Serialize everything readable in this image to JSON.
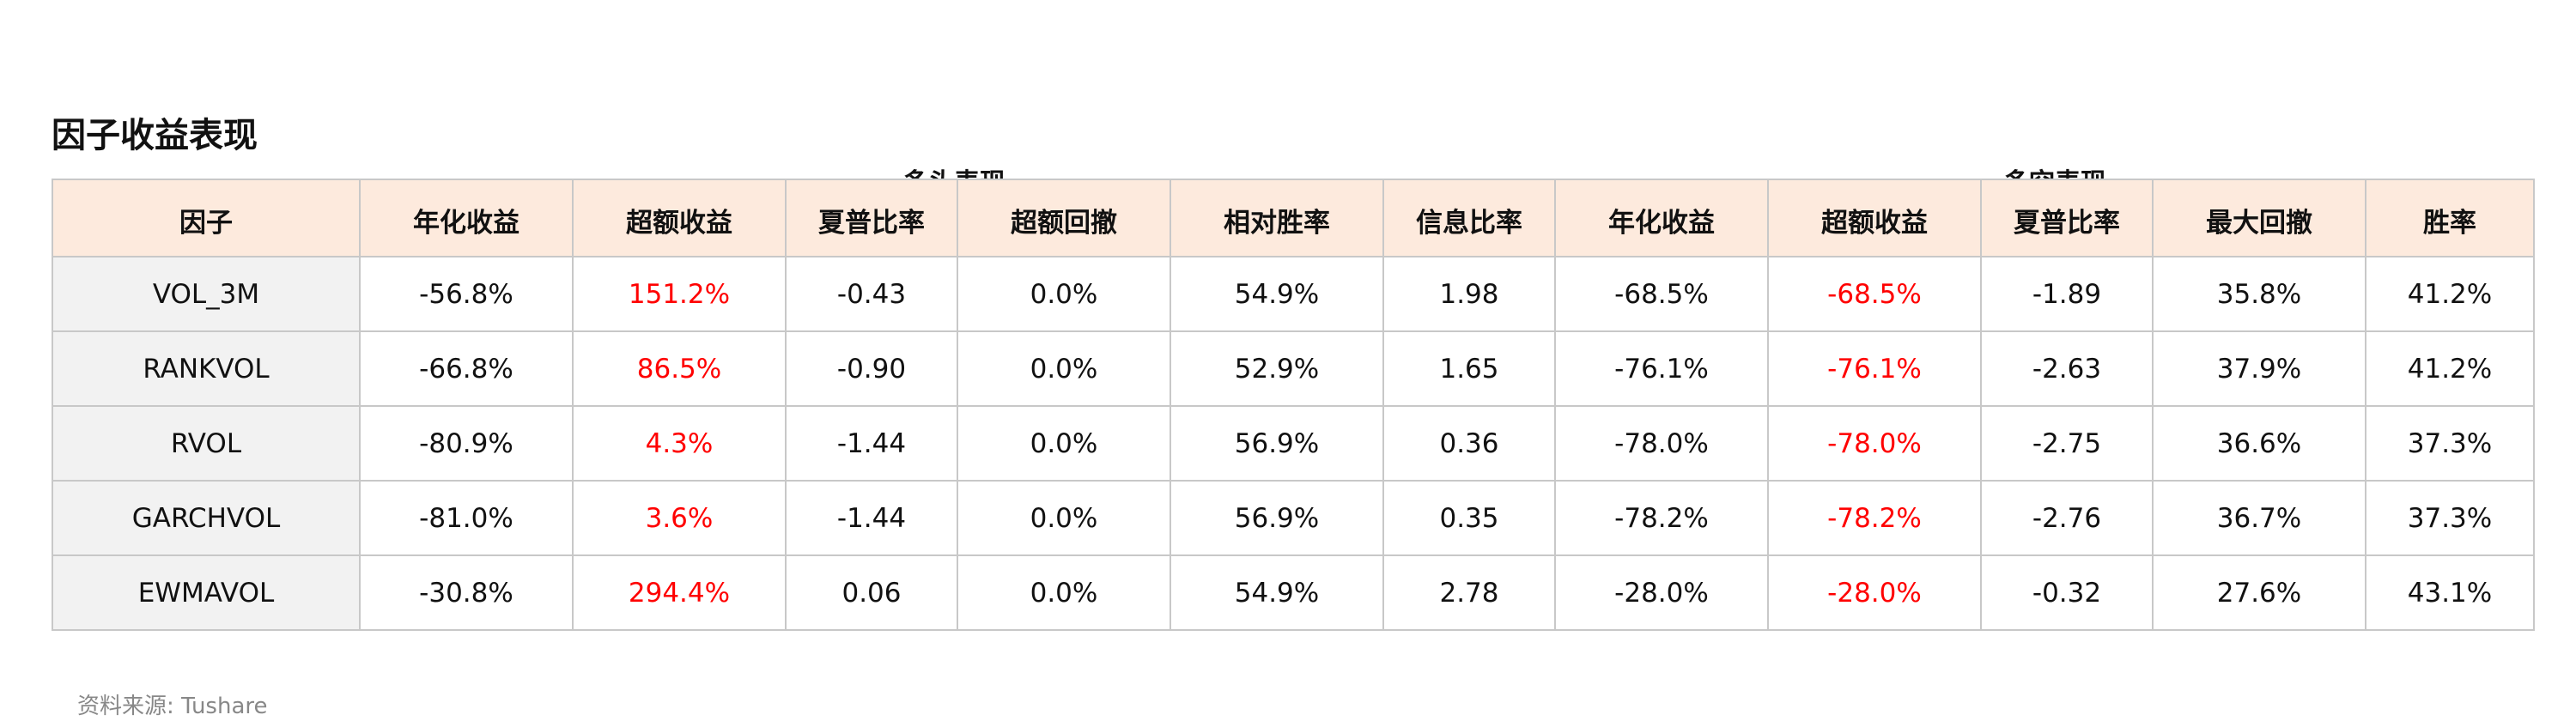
{
  "title": "因子收益表现",
  "groups": {
    "long": "多头表现",
    "long_short": "多空表现"
  },
  "headers": [
    "因子",
    "年化收益",
    "超额收益",
    "夏普比率",
    "超额回撤",
    "相对胜率",
    "信息比率",
    "年化收益",
    "超额收益",
    "夏普比率",
    "最大回撤",
    "胜率"
  ],
  "rows": [
    [
      "VOL_3M",
      "-56.8%",
      "151.2%",
      "-0.43",
      "0.0%",
      "54.9%",
      "1.98",
      "-68.5%",
      "-68.5%",
      "-1.89",
      "35.8%",
      "41.2%"
    ],
    [
      "RANKVOL",
      "-66.8%",
      "86.5%",
      "-0.90",
      "0.0%",
      "52.9%",
      "1.65",
      "-76.1%",
      "-76.1%",
      "-2.63",
      "37.9%",
      "41.2%"
    ],
    [
      "RVOL",
      "-80.9%",
      "4.3%",
      "-1.44",
      "0.0%",
      "56.9%",
      "0.36",
      "-78.0%",
      "-78.0%",
      "-2.75",
      "36.6%",
      "37.3%"
    ],
    [
      "GARCHVOL",
      "-81.0%",
      "3.6%",
      "-1.44",
      "0.0%",
      "56.9%",
      "0.35",
      "-78.2%",
      "-78.2%",
      "-2.76",
      "36.7%",
      "37.3%"
    ],
    [
      "EWMAVOL",
      "-30.8%",
      "294.4%",
      "0.06",
      "0.0%",
      "54.9%",
      "2.78",
      "-28.0%",
      "-28.0%",
      "-0.32",
      "27.6%",
      "43.1%"
    ]
  ],
  "excess_color": "#ff0000",
  "header_bg": "#fdeadd",
  "source": "资料来源: Tushare"
}
